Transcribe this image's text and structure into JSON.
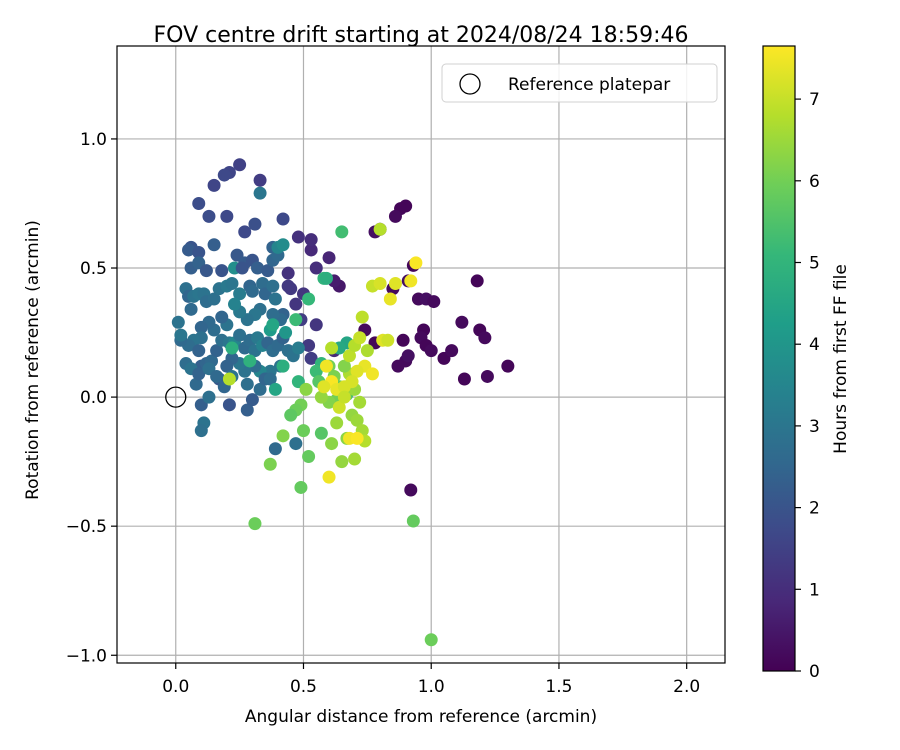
{
  "chart_data": {
    "type": "scatter",
    "title": "FOV centre drift starting at 2024/08/24 18:59:46",
    "xlabel": "Angular distance from reference (arcmin)",
    "ylabel": "Rotation from reference (arcmin)",
    "xlim": [
      -0.23,
      2.15
    ],
    "ylim": [
      -1.03,
      1.36
    ],
    "xticks": [
      0.0,
      0.5,
      1.0,
      1.5,
      2.0
    ],
    "xtick_labels": [
      "0.0",
      "0.5",
      "1.0",
      "1.5",
      "2.0"
    ],
    "yticks": [
      -1.0,
      -0.5,
      0.0,
      0.5,
      1.0
    ],
    "ytick_labels": [
      "−1.0",
      "−0.5",
      "0.0",
      "0.5",
      "1.0"
    ],
    "grid": true,
    "legend": {
      "placement": "top-right",
      "entries": [
        "Reference platepar"
      ]
    },
    "reference_point": {
      "name": "Reference platepar",
      "x": 0.0,
      "y": 0.0
    },
    "colorbar": {
      "label": "Hours from first FF file",
      "colormap": "viridis",
      "range": [
        0,
        7.65
      ],
      "ticks": [
        0,
        1,
        2,
        3,
        4,
        5,
        6,
        7
      ],
      "tick_labels": [
        "0",
        "1",
        "2",
        "3",
        "4",
        "5",
        "6",
        "7"
      ]
    },
    "colors": {
      "axis": "#000000",
      "grid": "#b0b0b0",
      "viridis": [
        "#440154",
        "#482878",
        "#3e4989",
        "#31688e",
        "#26828e",
        "#1f9e89",
        "#35b779",
        "#6ece58",
        "#b5de2b",
        "#fde725"
      ]
    },
    "points": [
      [
        0.9,
        0.74,
        0.1
      ],
      [
        0.88,
        0.73,
        0.1
      ],
      [
        0.86,
        0.7,
        0.2
      ],
      [
        0.78,
        0.64,
        0.3
      ],
      [
        0.8,
        0.65,
        0.2
      ],
      [
        0.85,
        0.42,
        0.2
      ],
      [
        0.93,
        0.51,
        0.1
      ],
      [
        0.91,
        0.45,
        0.3
      ],
      [
        0.95,
        0.38,
        0.2
      ],
      [
        0.98,
        0.38,
        0.3
      ],
      [
        1.01,
        0.37,
        0.2
      ],
      [
        1.18,
        0.45,
        0.1
      ],
      [
        1.12,
        0.29,
        0.2
      ],
      [
        1.19,
        0.26,
        0.1
      ],
      [
        1.21,
        0.23,
        0.2
      ],
      [
        0.97,
        0.26,
        0.1
      ],
      [
        0.96,
        0.23,
        0.2
      ],
      [
        0.98,
        0.2,
        0.1
      ],
      [
        1.0,
        0.18,
        0.2
      ],
      [
        1.05,
        0.15,
        0.1
      ],
      [
        1.08,
        0.18,
        0.2
      ],
      [
        0.89,
        0.22,
        0.1
      ],
      [
        0.9,
        0.14,
        0.2
      ],
      [
        0.91,
        0.16,
        0.3
      ],
      [
        0.87,
        0.12,
        0.2
      ],
      [
        0.74,
        0.26,
        0.2
      ],
      [
        0.78,
        0.21,
        0.1
      ],
      [
        1.13,
        0.07,
        0.1
      ],
      [
        1.22,
        0.08,
        0.2
      ],
      [
        1.3,
        0.12,
        0.1
      ],
      [
        0.92,
        -0.36,
        0.2
      ],
      [
        0.64,
        0.43,
        0.5
      ],
      [
        0.62,
        0.45,
        0.6
      ],
      [
        0.6,
        0.54,
        0.8
      ],
      [
        0.53,
        0.57,
        0.9
      ],
      [
        0.53,
        0.61,
        1.0
      ],
      [
        0.48,
        0.62,
        1.1
      ],
      [
        0.55,
        0.5,
        1.0
      ],
      [
        0.5,
        0.4,
        1.2
      ],
      [
        0.45,
        0.42,
        1.3
      ],
      [
        0.44,
        0.48,
        1.1
      ],
      [
        0.55,
        0.28,
        1.2
      ],
      [
        0.52,
        0.2,
        1.3
      ],
      [
        0.53,
        0.15,
        1.4
      ],
      [
        0.62,
        0.18,
        0.9
      ],
      [
        0.25,
        0.9,
        1.5
      ],
      [
        0.21,
        0.87,
        1.6
      ],
      [
        0.19,
        0.86,
        1.7
      ],
      [
        0.15,
        0.82,
        1.6
      ],
      [
        0.33,
        0.84,
        1.4
      ],
      [
        0.09,
        0.75,
        1.8
      ],
      [
        0.13,
        0.7,
        1.8
      ],
      [
        0.2,
        0.7,
        1.7
      ],
      [
        0.27,
        0.64,
        1.7
      ],
      [
        0.31,
        0.67,
        1.9
      ],
      [
        0.33,
        0.79,
        3.0
      ],
      [
        0.06,
        0.58,
        2.0
      ],
      [
        0.05,
        0.57,
        2.2
      ],
      [
        0.09,
        0.56,
        2.0
      ],
      [
        0.06,
        0.5,
        2.3
      ],
      [
        0.09,
        0.52,
        2.4
      ],
      [
        0.15,
        0.59,
        2.3
      ],
      [
        0.12,
        0.49,
        2.1
      ],
      [
        0.18,
        0.49,
        2.0
      ],
      [
        0.24,
        0.55,
        2.1
      ],
      [
        0.27,
        0.52,
        2.2
      ],
      [
        0.3,
        0.53,
        2.0
      ],
      [
        0.32,
        0.5,
        2.3
      ],
      [
        0.36,
        0.49,
        2.2
      ],
      [
        0.38,
        0.53,
        2.5
      ],
      [
        0.38,
        0.58,
        2.4
      ],
      [
        0.4,
        0.55,
        2.6
      ],
      [
        0.4,
        0.58,
        3.5
      ],
      [
        0.42,
        0.59,
        3.7
      ],
      [
        0.42,
        0.69,
        1.7
      ],
      [
        0.04,
        0.42,
        2.8
      ],
      [
        0.05,
        0.39,
        2.5
      ],
      [
        0.07,
        0.39,
        2.9
      ],
      [
        0.09,
        0.4,
        3.0
      ],
      [
        0.11,
        0.4,
        2.9
      ],
      [
        0.06,
        0.34,
        2.6
      ],
      [
        0.12,
        0.37,
        2.7
      ],
      [
        0.15,
        0.38,
        2.8
      ],
      [
        0.17,
        0.42,
        2.9
      ],
      [
        0.2,
        0.43,
        3.1
      ],
      [
        0.22,
        0.44,
        3.0
      ],
      [
        0.25,
        0.4,
        3.2
      ],
      [
        0.23,
        0.5,
        3.8
      ],
      [
        0.26,
        0.5,
        2.0
      ],
      [
        0.29,
        0.43,
        2.5
      ],
      [
        0.3,
        0.41,
        2.6
      ],
      [
        0.34,
        0.44,
        2.7
      ],
      [
        0.35,
        0.4,
        2.5
      ],
      [
        0.38,
        0.43,
        2.8
      ],
      [
        0.39,
        0.38,
        2.9
      ],
      [
        0.44,
        0.43,
        1.3
      ],
      [
        0.47,
        0.36,
        1.2
      ],
      [
        0.49,
        0.3,
        1.4
      ],
      [
        0.42,
        0.32,
        2.4
      ],
      [
        0.41,
        0.3,
        2.6
      ],
      [
        0.38,
        0.32,
        2.7
      ],
      [
        0.33,
        0.34,
        2.8
      ],
      [
        0.31,
        0.32,
        3.0
      ],
      [
        0.28,
        0.3,
        2.9
      ],
      [
        0.25,
        0.33,
        3.1
      ],
      [
        0.23,
        0.36,
        3.4
      ],
      [
        0.2,
        0.28,
        2.9
      ],
      [
        0.18,
        0.31,
        2.5
      ],
      [
        0.15,
        0.26,
        2.7
      ],
      [
        0.13,
        0.29,
        2.6
      ],
      [
        0.1,
        0.27,
        2.5
      ],
      [
        0.1,
        0.23,
        2.8
      ],
      [
        0.07,
        0.22,
        2.9
      ],
      [
        0.05,
        0.2,
        2.7
      ],
      [
        0.02,
        0.22,
        2.6
      ],
      [
        0.01,
        0.29,
        2.9
      ],
      [
        0.02,
        0.24,
        3.0
      ],
      [
        0.09,
        0.18,
        2.4
      ],
      [
        0.1,
        0.12,
        2.3
      ],
      [
        0.12,
        0.13,
        2.5
      ],
      [
        0.14,
        0.14,
        2.6
      ],
      [
        0.16,
        0.18,
        2.4
      ],
      [
        0.18,
        0.22,
        2.8
      ],
      [
        0.21,
        0.21,
        3.0
      ],
      [
        0.23,
        0.21,
        3.5
      ],
      [
        0.25,
        0.24,
        2.8
      ],
      [
        0.27,
        0.19,
        2.6
      ],
      [
        0.29,
        0.22,
        2.7
      ],
      [
        0.31,
        0.18,
        2.9
      ],
      [
        0.32,
        0.23,
        3.1
      ],
      [
        0.34,
        0.2,
        3.4
      ],
      [
        0.36,
        0.21,
        2.5
      ],
      [
        0.38,
        0.18,
        2.7
      ],
      [
        0.4,
        0.2,
        2.6
      ],
      [
        0.42,
        0.23,
        2.4
      ],
      [
        0.44,
        0.18,
        2.8
      ],
      [
        0.46,
        0.16,
        2.9
      ],
      [
        0.48,
        0.19,
        3.2
      ],
      [
        0.43,
        0.25,
        4.0
      ],
      [
        0.37,
        0.26,
        4.2
      ],
      [
        0.38,
        0.28,
        4.5
      ],
      [
        0.41,
        0.12,
        2.9
      ],
      [
        0.37,
        0.1,
        3.0
      ],
      [
        0.33,
        0.1,
        3.5
      ],
      [
        0.31,
        0.12,
        2.7
      ],
      [
        0.27,
        0.1,
        2.9
      ],
      [
        0.25,
        0.13,
        3.0
      ],
      [
        0.22,
        0.15,
        2.5
      ],
      [
        0.2,
        0.12,
        2.4
      ],
      [
        0.17,
        0.07,
        2.1
      ],
      [
        0.19,
        0.04,
        2.5
      ],
      [
        0.08,
        0.05,
        2.6
      ],
      [
        0.04,
        0.13,
        2.7
      ],
      [
        0.06,
        0.11,
        2.9
      ],
      [
        0.09,
        0.09,
        2.4
      ],
      [
        0.13,
        0.11,
        2.8
      ],
      [
        0.16,
        0.08,
        2.6
      ],
      [
        0.22,
        0.08,
        2.9
      ],
      [
        0.11,
        -0.1,
        2.9
      ],
      [
        0.1,
        -0.13,
        2.8
      ],
      [
        0.1,
        -0.03,
        2.3
      ],
      [
        0.13,
        0.0,
        2.8
      ],
      [
        0.21,
        -0.03,
        2.0
      ],
      [
        0.28,
        -0.05,
        2.3
      ],
      [
        0.3,
        -0.01,
        2.2
      ],
      [
        0.33,
        0.03,
        2.7
      ],
      [
        0.28,
        0.05,
        2.8
      ],
      [
        0.35,
        0.07,
        2.5
      ],
      [
        0.37,
        0.07,
        2.7
      ],
      [
        0.39,
        0.03,
        4.5
      ],
      [
        0.42,
        0.12,
        4.8
      ],
      [
        0.39,
        -0.2,
        2.6
      ],
      [
        0.47,
        -0.18,
        2.8
      ],
      [
        0.48,
        0.06,
        5.0
      ],
      [
        0.21,
        0.07,
        6.8
      ],
      [
        0.22,
        0.19,
        4.8
      ],
      [
        0.29,
        0.14,
        4.9
      ],
      [
        0.47,
        0.3,
        5.2
      ],
      [
        0.52,
        0.38,
        5.1
      ],
      [
        0.58,
        0.46,
        5.0
      ],
      [
        0.59,
        0.46,
        4.8
      ],
      [
        0.65,
        0.64,
        5.3
      ],
      [
        0.8,
        0.65,
        6.8
      ],
      [
        0.67,
        0.21,
        4.5
      ],
      [
        0.64,
        0.19,
        4.6
      ],
      [
        0.57,
        0.13,
        5.0
      ],
      [
        0.55,
        0.1,
        5.2
      ],
      [
        0.56,
        0.06,
        5.6
      ],
      [
        0.6,
        0.12,
        6.0
      ],
      [
        0.62,
        0.08,
        6.1
      ],
      [
        0.64,
        0.04,
        5.8
      ],
      [
        0.67,
        0.01,
        5.5
      ],
      [
        0.63,
        -0.01,
        6.0
      ],
      [
        0.6,
        -0.02,
        6.2
      ],
      [
        0.57,
        0.0,
        6.4
      ],
      [
        0.51,
        0.03,
        6.3
      ],
      [
        0.49,
        -0.03,
        6.0
      ],
      [
        0.47,
        -0.05,
        5.9
      ],
      [
        0.45,
        -0.07,
        5.7
      ],
      [
        0.42,
        -0.15,
        6.2
      ],
      [
        0.37,
        -0.26,
        6.1
      ],
      [
        0.52,
        -0.23,
        5.8
      ],
      [
        0.57,
        -0.14,
        5.6
      ],
      [
        0.5,
        -0.13,
        5.9
      ],
      [
        0.49,
        -0.35,
        5.8
      ],
      [
        0.31,
        -0.49,
        5.9
      ],
      [
        0.93,
        -0.48,
        5.8
      ],
      [
        1.0,
        -0.94,
        5.9
      ],
      [
        0.61,
        -0.18,
        6.3
      ],
      [
        0.63,
        -0.1,
        6.5
      ],
      [
        0.65,
        -0.25,
        6.4
      ],
      [
        0.67,
        -0.16,
        6.3
      ],
      [
        0.69,
        -0.07,
        6.4
      ],
      [
        0.71,
        -0.09,
        6.5
      ],
      [
        0.73,
        -0.13,
        6.6
      ],
      [
        0.74,
        -0.17,
        6.8
      ],
      [
        0.7,
        -0.24,
        6.6
      ],
      [
        0.68,
        0.09,
        6.7
      ],
      [
        0.7,
        0.03,
        6.5
      ],
      [
        0.72,
        -0.02,
        6.6
      ],
      [
        0.66,
        0.12,
        6.2
      ],
      [
        0.68,
        0.16,
        6.9
      ],
      [
        0.7,
        0.2,
        6.8
      ],
      [
        0.72,
        0.23,
        7.0
      ],
      [
        0.75,
        0.18,
        6.7
      ],
      [
        0.73,
        0.31,
        6.9
      ],
      [
        0.77,
        0.43,
        7.0
      ],
      [
        0.8,
        0.44,
        7.2
      ],
      [
        0.84,
        0.38,
        7.4
      ],
      [
        0.86,
        0.44,
        7.3
      ],
      [
        0.92,
        0.45,
        7.5
      ],
      [
        0.94,
        0.52,
        7.6
      ],
      [
        0.81,
        0.22,
        7.3
      ],
      [
        0.83,
        0.22,
        7.1
      ],
      [
        0.61,
        0.19,
        6.8
      ],
      [
        0.59,
        0.12,
        7.5
      ],
      [
        0.61,
        0.06,
        7.6
      ],
      [
        0.63,
        0.03,
        7.4
      ],
      [
        0.58,
        0.04,
        7.3
      ],
      [
        0.66,
        0.04,
        7.2
      ],
      [
        0.68,
        -0.16,
        7.5
      ],
      [
        0.71,
        -0.16,
        7.6
      ],
      [
        0.6,
        -0.31,
        7.5
      ],
      [
        0.74,
        0.12,
        7.4
      ],
      [
        0.77,
        0.09,
        7.5
      ],
      [
        0.71,
        0.1,
        7.3
      ],
      [
        0.69,
        0.06,
        7.2
      ],
      [
        0.64,
        -0.04,
        7.1
      ],
      [
        0.66,
        0.0,
        7.0
      ]
    ]
  }
}
